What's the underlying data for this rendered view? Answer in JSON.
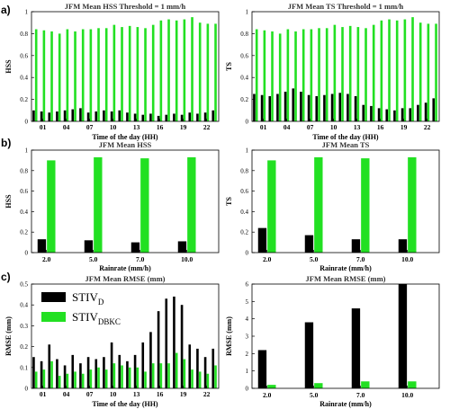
{
  "panel_labels": [
    "a)",
    "b)",
    "c)"
  ],
  "colors": {
    "STIV_D": "#000000",
    "STIV_DBKC": "#22e022"
  },
  "legend": {
    "items": [
      {
        "base": "STIV",
        "sub": "D",
        "color": "#000000"
      },
      {
        "base": "STIV",
        "sub": "DBKC",
        "color": "#22e022"
      }
    ]
  },
  "chart_data": [
    {
      "id": "a-left",
      "type": "bar",
      "title": "JFM Mean HSS Threshold = 1 mm/h",
      "xlabel": "Time of the day (HH)",
      "ylabel": "HSS",
      "ylim": [
        0,
        1
      ],
      "yticks": [
        0,
        0.2,
        0.4,
        0.6,
        0.8,
        1
      ],
      "categories": [
        "00",
        "01",
        "02",
        "03",
        "04",
        "05",
        "06",
        "07",
        "08",
        "09",
        "10",
        "11",
        "12",
        "13",
        "14",
        "15",
        "16",
        "17",
        "18",
        "19",
        "20",
        "21",
        "22",
        "23"
      ],
      "xtick_labels": [
        {
          "cat": 1,
          "label": "01"
        },
        {
          "cat": 4,
          "label": "04"
        },
        {
          "cat": 7,
          "label": "07"
        },
        {
          "cat": 10,
          "label": "10"
        },
        {
          "cat": 13,
          "label": "13"
        },
        {
          "cat": 16,
          "label": "16"
        },
        {
          "cat": 19,
          "label": "19"
        },
        {
          "cat": 22,
          "label": "22"
        }
      ],
      "series": [
        {
          "key": "STIV_D",
          "values": [
            0.1,
            0.09,
            0.08,
            0.09,
            0.1,
            0.11,
            0.12,
            0.08,
            0.09,
            0.1,
            0.09,
            0.1,
            0.08,
            0.07,
            0.06,
            0.07,
            0.05,
            0.06,
            0.07,
            0.06,
            0.08,
            0.07,
            0.08,
            0.1
          ]
        },
        {
          "key": "STIV_DBKC",
          "values": [
            0.84,
            0.83,
            0.82,
            0.8,
            0.84,
            0.82,
            0.84,
            0.84,
            0.85,
            0.85,
            0.88,
            0.86,
            0.87,
            0.86,
            0.85,
            0.88,
            0.92,
            0.93,
            0.92,
            0.93,
            0.95,
            0.9,
            0.89,
            0.89
          ]
        }
      ]
    },
    {
      "id": "a-right",
      "type": "bar",
      "title": "JFM Mean TS Threshold = 1 mm/h",
      "xlabel": "Time of the day (HH)",
      "ylabel": "TS",
      "ylim": [
        0,
        1
      ],
      "yticks": [
        0,
        0.2,
        0.4,
        0.6,
        0.8,
        1
      ],
      "categories": [
        "00",
        "01",
        "02",
        "03",
        "04",
        "05",
        "06",
        "07",
        "08",
        "09",
        "10",
        "11",
        "12",
        "13",
        "14",
        "15",
        "16",
        "17",
        "18",
        "19",
        "20",
        "21",
        "22",
        "23"
      ],
      "xtick_labels": [
        {
          "cat": 1,
          "label": "01"
        },
        {
          "cat": 4,
          "label": "04"
        },
        {
          "cat": 7,
          "label": "07"
        },
        {
          "cat": 10,
          "label": "10"
        },
        {
          "cat": 13,
          "label": "13"
        },
        {
          "cat": 16,
          "label": "16"
        },
        {
          "cat": 19,
          "label": "19"
        },
        {
          "cat": 22,
          "label": "22"
        }
      ],
      "series": [
        {
          "key": "STIV_D",
          "values": [
            0.25,
            0.24,
            0.23,
            0.25,
            0.27,
            0.3,
            0.27,
            0.24,
            0.23,
            0.24,
            0.25,
            0.26,
            0.25,
            0.23,
            0.15,
            0.14,
            0.12,
            0.11,
            0.1,
            0.12,
            0.12,
            0.15,
            0.17,
            0.21
          ]
        },
        {
          "key": "STIV_DBKC",
          "values": [
            0.84,
            0.83,
            0.82,
            0.8,
            0.84,
            0.82,
            0.84,
            0.84,
            0.85,
            0.85,
            0.88,
            0.86,
            0.87,
            0.86,
            0.85,
            0.88,
            0.92,
            0.93,
            0.92,
            0.93,
            0.95,
            0.9,
            0.89,
            0.89
          ]
        }
      ]
    },
    {
      "id": "b-left",
      "type": "bar",
      "title": "JFM Mean HSS",
      "xlabel": "Rainrate (mm/h)",
      "ylabel": "HSS",
      "ylim": [
        0,
        1
      ],
      "yticks": [
        0,
        0.2,
        0.4,
        0.6,
        0.8,
        1
      ],
      "categories": [
        "2.0",
        "5.0",
        "7.0",
        "10.0"
      ],
      "series": [
        {
          "key": "STIV_D",
          "values": [
            0.13,
            0.12,
            0.1,
            0.11
          ]
        },
        {
          "key": "STIV_DBKC",
          "values": [
            0.9,
            0.93,
            0.92,
            0.93
          ]
        }
      ]
    },
    {
      "id": "b-right",
      "type": "bar",
      "title": "JFM Mean TS",
      "xlabel": "Rainrate (mm/h)",
      "ylabel": "TS",
      "ylim": [
        0,
        1
      ],
      "yticks": [
        0,
        0.2,
        0.4,
        0.6,
        0.8,
        1
      ],
      "categories": [
        "2.0",
        "5.0",
        "7.0",
        "10.0"
      ],
      "series": [
        {
          "key": "STIV_D",
          "values": [
            0.24,
            0.17,
            0.13,
            0.13
          ]
        },
        {
          "key": "STIV_DBKC",
          "values": [
            0.9,
            0.93,
            0.92,
            0.93
          ]
        }
      ]
    },
    {
      "id": "c-left",
      "type": "bar",
      "title": "JFM Mean RMSE (mm)",
      "xlabel": "Time of the day (HH)",
      "ylabel": "RMSE (mm)",
      "ylim": [
        0,
        0.5
      ],
      "yticks": [
        0,
        0.1,
        0.2,
        0.3,
        0.4,
        0.5
      ],
      "categories": [
        "00",
        "01",
        "02",
        "03",
        "04",
        "05",
        "06",
        "07",
        "08",
        "09",
        "10",
        "11",
        "12",
        "13",
        "14",
        "15",
        "16",
        "17",
        "18",
        "19",
        "20",
        "21",
        "22",
        "23"
      ],
      "xtick_labels": [
        {
          "cat": 1,
          "label": "01"
        },
        {
          "cat": 4,
          "label": "04"
        },
        {
          "cat": 7,
          "label": "07"
        },
        {
          "cat": 10,
          "label": "10"
        },
        {
          "cat": 13,
          "label": "13"
        },
        {
          "cat": 16,
          "label": "16"
        },
        {
          "cat": 19,
          "label": "19"
        },
        {
          "cat": 22,
          "label": "22"
        }
      ],
      "series": [
        {
          "key": "STIV_D",
          "values": [
            0.15,
            0.13,
            0.21,
            0.14,
            0.11,
            0.16,
            0.12,
            0.15,
            0.14,
            0.15,
            0.22,
            0.16,
            0.13,
            0.16,
            0.22,
            0.27,
            0.37,
            0.43,
            0.44,
            0.4,
            0.21,
            0.19,
            0.15,
            0.19
          ]
        },
        {
          "key": "STIV_DBKC",
          "values": [
            0.08,
            0.09,
            0.13,
            0.06,
            0.07,
            0.08,
            0.07,
            0.09,
            0.1,
            0.09,
            0.12,
            0.11,
            0.1,
            0.1,
            0.08,
            0.12,
            0.12,
            0.12,
            0.17,
            0.14,
            0.09,
            0.08,
            0.07,
            0.11
          ]
        }
      ]
    },
    {
      "id": "c-right",
      "type": "bar",
      "title": "JFM Mean RMSE (mm)",
      "xlabel": "Rainrate (mm/h)",
      "ylabel": "RMSE (mm)",
      "ylim": [
        0,
        6
      ],
      "yticks": [
        0,
        1,
        2,
        3,
        4,
        5,
        6
      ],
      "categories": [
        "2.0",
        "5.0",
        "7.0",
        "10.0"
      ],
      "series": [
        {
          "key": "STIV_D",
          "values": [
            2.2,
            3.8,
            4.6,
            6.0
          ]
        },
        {
          "key": "STIV_DBKC",
          "values": [
            0.2,
            0.3,
            0.4,
            0.4
          ]
        }
      ]
    }
  ]
}
